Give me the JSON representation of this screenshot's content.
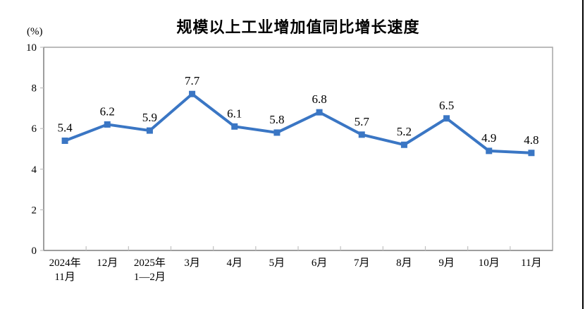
{
  "window": {
    "background": "#ffffff",
    "right_edge_line_color": "#000000"
  },
  "chart_data": {
    "type": "line",
    "title": "规模以上工业增加值同比增长速度",
    "unit_label": "(%)",
    "xlabel": "",
    "ylabel": "(%)",
    "categories": [
      [
        "2024年",
        "11月"
      ],
      [
        "12月"
      ],
      [
        "2025年",
        "1—2月"
      ],
      [
        "3月"
      ],
      [
        "4月"
      ],
      [
        "5月"
      ],
      [
        "6月"
      ],
      [
        "7月"
      ],
      [
        "8月"
      ],
      [
        "9月"
      ],
      [
        "10月"
      ],
      [
        "11月"
      ]
    ],
    "values": [
      5.4,
      6.2,
      5.9,
      7.7,
      6.1,
      5.8,
      6.8,
      5.7,
      5.2,
      6.5,
      4.9,
      4.8
    ],
    "data_labels": [
      "5.4",
      "6.2",
      "5.9",
      "7.7",
      "6.1",
      "5.8",
      "6.8",
      "5.7",
      "5.2",
      "6.5",
      "4.9",
      "4.8"
    ],
    "ylim": [
      0,
      10
    ],
    "yticks": [
      0,
      2,
      4,
      6,
      8,
      10
    ],
    "grid": false,
    "legend_position": "none",
    "marker": "square",
    "line_color": "#3A76C4",
    "marker_color": "#3A76C4",
    "border_color": "#A6A6A6",
    "axis_color": "#8C8C8C",
    "tick_color": "#C0C0C0",
    "label_color": "#000000"
  }
}
